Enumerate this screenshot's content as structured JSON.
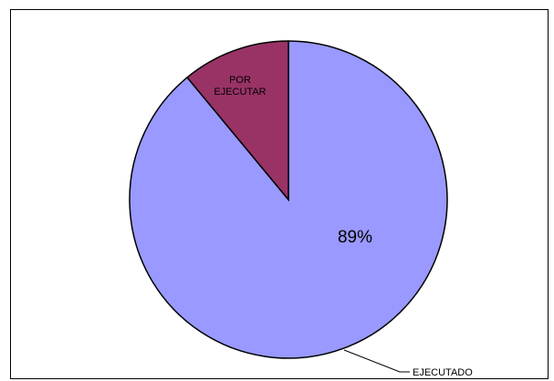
{
  "chart_data": {
    "type": "pie",
    "slices": [
      {
        "label": "EJECUTADO",
        "value": 89,
        "value_label": "89%",
        "color": "#9999ff"
      },
      {
        "label": "POR EJECUTAR",
        "value": 11,
        "value_label": "",
        "color": "#993366"
      }
    ],
    "label_lines": {
      "por_ejecutar_line1": "POR",
      "por_ejecutar_line2": "EJECUTAR"
    },
    "start_angle_deg": 0,
    "direction": "clockwise",
    "border_color": "#000000"
  }
}
